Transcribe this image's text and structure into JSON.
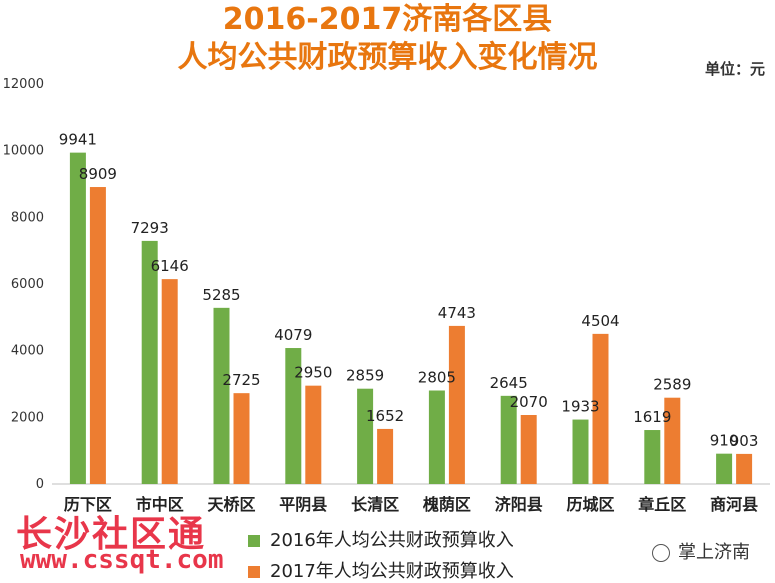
{
  "header": {
    "title_line1": "2016-2017济南各区县",
    "title_line2": "人均公共财政预算收入变化情况",
    "unit": "单位：元"
  },
  "watermarks": {
    "site_name": "长沙社区通",
    "site_url": "www.cssqt.com",
    "account": "掌上济南"
  },
  "colors": {
    "title": "#e8760f",
    "series_2016": "#70ad47",
    "series_2017": "#ed7d31",
    "watermark": "#e8364a"
  },
  "chart_data": {
    "type": "bar",
    "title": "2016-2017济南各区县人均公共财政预算收入变化情况",
    "categories": [
      "历下区",
      "市中区",
      "天桥区",
      "平阴县",
      "长清区",
      "槐荫区",
      "济阳县",
      "历城区",
      "章丘区",
      "商河县"
    ],
    "series": [
      {
        "name": "2016年人均公共财政预算收入",
        "values": [
          9941,
          7293,
          5285,
          4079,
          2859,
          2805,
          2645,
          1933,
          1619,
          910
        ]
      },
      {
        "name": "2017年人均公共财政预算收入",
        "values": [
          8909,
          6146,
          2725,
          2950,
          1652,
          4743,
          2070,
          4504,
          2589,
          903
        ]
      }
    ],
    "ylim": [
      0,
      12000
    ],
    "yticks": [
      0,
      2000,
      4000,
      6000,
      8000,
      10000,
      12000
    ],
    "grid": false,
    "legend_position": "bottom"
  }
}
